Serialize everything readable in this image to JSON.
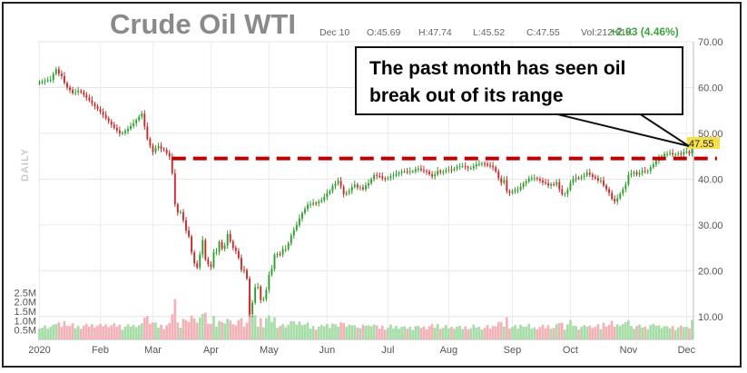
{
  "header": {
    "title": "Crude Oil WTI",
    "date": "Dec 10",
    "open": "O:45.69",
    "high": "H:47.74",
    "low": "L:45.52",
    "close": "C:47.55",
    "volume": "Vol:212.61K",
    "change": "+2.03 (4.46%)"
  },
  "period_label": "DAILY",
  "price_badge": "47.55",
  "annotation": "The past month has seen oil break out of its range",
  "colors": {
    "up": "#2e9e2e",
    "down": "#c92a2a",
    "vol_up": "#a8dca8",
    "vol_down": "#f2b3b8",
    "range_line": "#c00000",
    "badge": "#f6e04a"
  },
  "chart_data": {
    "type": "candlestick",
    "title": "Crude Oil WTI",
    "price_axis": {
      "min": 5,
      "max": 70,
      "ticks": [
        "70.00",
        "60.00",
        "50.00",
        "40.00",
        "30.00",
        "20.00",
        "10.00"
      ],
      "tick_values": [
        70,
        60,
        50,
        40,
        30,
        20,
        10
      ]
    },
    "volume_axis": {
      "min": 0,
      "max": 3.0,
      "ticks": [
        "2.5M",
        "2.0M",
        "1.5M",
        "1.0M",
        "0.5M"
      ],
      "tick_values": [
        2.5,
        2.0,
        1.5,
        1.0,
        0.5
      ]
    },
    "x_labels": [
      "2020",
      "Feb",
      "Mar",
      "Apr",
      "May",
      "Jun",
      "Jul",
      "Aug",
      "Sep",
      "Oct",
      "Nov",
      "Dec"
    ],
    "x_label_index": [
      0,
      22,
      41,
      62,
      83,
      104,
      126,
      148,
      171,
      192,
      213,
      234
    ],
    "range_line": {
      "value": 44.5,
      "from_index": 48,
      "to_index": 245
    },
    "grid": true,
    "close_series": [
      61.2,
      61.3,
      61.5,
      61.6,
      61.7,
      63.0,
      64.0,
      63.0,
      62.5,
      61.0,
      60.0,
      59.5,
      58.8,
      59.0,
      59.3,
      59.0,
      58.4,
      57.8,
      57.2,
      56.5,
      55.9,
      55.3,
      54.7,
      54.0,
      53.3,
      52.6,
      51.9,
      51.2,
      50.6,
      50.0,
      50.1,
      50.5,
      51.0,
      51.6,
      52.2,
      52.9,
      53.6,
      54.3,
      51.5,
      48.8,
      47.3,
      45.9,
      46.8,
      47.2,
      46.6,
      46.4,
      45.7,
      44.9,
      41.3,
      34.5,
      32.7,
      32.8,
      31.0,
      28.8,
      27.5,
      24.0,
      21.6,
      20.7,
      23.5,
      26.7,
      22.5,
      21.4,
      20.8,
      24.0,
      24.1,
      26.3,
      24.8,
      25.5,
      28.0,
      26.4,
      25.0,
      24.3,
      22.8,
      20.2,
      20.1,
      18.3,
      10.5,
      13.0,
      16.4,
      16.5,
      13.6,
      13.8,
      15.8,
      19.1,
      20.4,
      23.5,
      23.6,
      23.5,
      24.7,
      24.7,
      26.0,
      27.7,
      28.9,
      30.0,
      31.4,
      32.6,
      33.5,
      34.4,
      34.5,
      34.8,
      34.7,
      35.1,
      35.4,
      36.1,
      36.9,
      37.4,
      38.5,
      39.0,
      39.6,
      38.4,
      36.7,
      37.0,
      37.4,
      38.3,
      38.8,
      38.2,
      38.2,
      37.8,
      38.6,
      39.1,
      40.0,
      40.9,
      40.7,
      40.6,
      40.2,
      40.1,
      40.2,
      40.6,
      40.8,
      41.1,
      41.4,
      41.7,
      41.7,
      41.6,
      41.7,
      41.7,
      42.2,
      42.3,
      42.0,
      41.8,
      41.6,
      41.1,
      40.6,
      41.0,
      41.8,
      41.5,
      41.6,
      41.9,
      42.1,
      42.0,
      42.3,
      42.7,
      42.8,
      42.8,
      42.6,
      42.4,
      42.4,
      42.8,
      43.2,
      43.3,
      43.4,
      43.3,
      43.0,
      42.9,
      42.6,
      41.7,
      40.2,
      39.2,
      39.8,
      37.4,
      37.0,
      37.3,
      37.6,
      37.7,
      38.3,
      39.1,
      39.5,
      40.1,
      40.2,
      40.2,
      40.0,
      39.7,
      39.3,
      39.1,
      38.6,
      38.9,
      38.8,
      39.3,
      37.8,
      36.7,
      36.8,
      37.7,
      39.2,
      40.0,
      40.3,
      40.2,
      40.5,
      40.8,
      41.4,
      41.0,
      40.5,
      40.2,
      39.7,
      39.7,
      38.6,
      37.8,
      37.0,
      35.7,
      35.1,
      35.8,
      36.8,
      37.8,
      38.8,
      40.9,
      41.2,
      41.5,
      41.0,
      41.4,
      41.8,
      41.6,
      41.8,
      42.6,
      43.2,
      44.0,
      44.5,
      45.0,
      45.5,
      45.5,
      45.7,
      45.4,
      45.4,
      45.6,
      45.4,
      45.9,
      46.0,
      45.6,
      47.6
    ]
  }
}
